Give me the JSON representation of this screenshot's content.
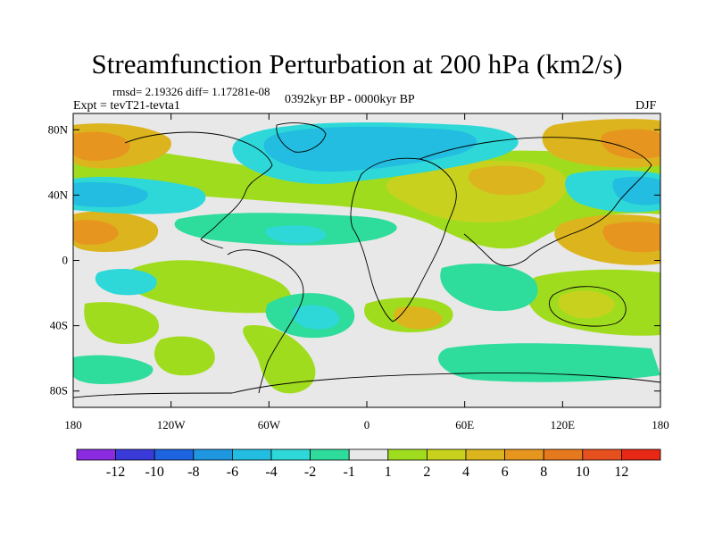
{
  "header": {
    "title": "Streamfunction Perturbation at 200 hPa (km2/s)",
    "rmsd_line": "rmsd= 2.19326 diff= 1.17281e-08",
    "experiment": "Expt = tevT21-tevta1",
    "period": "0392kyr BP - 0000kyr BP",
    "season": "DJF"
  },
  "axes": {
    "y_ticks": [
      {
        "label": "80N",
        "lat": 80
      },
      {
        "label": "40N",
        "lat": 40
      },
      {
        "label": "0",
        "lat": 0
      },
      {
        "label": "40S",
        "lat": -40
      },
      {
        "label": "80S",
        "lat": -80
      }
    ],
    "x_ticks": [
      {
        "label": "180",
        "lon": -180
      },
      {
        "label": "120W",
        "lon": -120
      },
      {
        "label": "60W",
        "lon": -60
      },
      {
        "label": "0",
        "lon": 0
      },
      {
        "label": "60E",
        "lon": 60
      },
      {
        "label": "120E",
        "lon": 120
      },
      {
        "label": "180",
        "lon": 180
      }
    ]
  },
  "colorbar": {
    "colors": [
      "#8a2be2",
      "#3a3ad8",
      "#1e64e0",
      "#1e96e0",
      "#22bde0",
      "#2ed8d8",
      "#2edc9c",
      "#e8e8e8",
      "#a0dc1e",
      "#c8d21e",
      "#dcb41e",
      "#e6961e",
      "#e6781e",
      "#e6501e",
      "#e62814"
    ],
    "labels": [
      "-12",
      "-10",
      "-8",
      "-6",
      "-4",
      "-2",
      "-1",
      "1",
      "2",
      "4",
      "6",
      "8",
      "10",
      "12"
    ]
  },
  "chart_data": {
    "type": "heatmap",
    "title": "Streamfunction Perturbation at 200 hPa (km2/s)",
    "variable": "Streamfunction perturbation",
    "units": "km2/s",
    "level": "200 hPa",
    "season": "DJF",
    "lon_range": [
      -180,
      180
    ],
    "lat_range": [
      -90,
      90
    ],
    "contour_levels": [
      -12,
      -10,
      -8,
      -6,
      -4,
      -2,
      -1,
      1,
      2,
      4,
      6,
      8,
      10,
      12
    ],
    "regions": [
      {
        "name": "north-pacific-high",
        "lon": -160,
        "lat": 68,
        "value": 5
      },
      {
        "name": "north-pacific-low",
        "lon": -150,
        "lat": 42,
        "value": -4
      },
      {
        "name": "subtropical-pacific-high",
        "lon": -165,
        "lat": 18,
        "value": 6
      },
      {
        "name": "north-america-arctic-low",
        "lon": -30,
        "lat": 68,
        "value": -5
      },
      {
        "name": "atlantic-low-band",
        "lon": -50,
        "lat": 15,
        "value": -3
      },
      {
        "name": "eurasia-high",
        "lon": 40,
        "lat": 45,
        "value": 4
      },
      {
        "name": "central-asia-high",
        "lon": 100,
        "lat": 55,
        "value": 3
      },
      {
        "name": "west-pacific-high",
        "lon": 150,
        "lat": 20,
        "value": 6
      },
      {
        "name": "northwest-pacific-low",
        "lon": 145,
        "lat": 45,
        "value": -3
      },
      {
        "name": "arctic-east-high",
        "lon": 160,
        "lat": 72,
        "value": 5
      },
      {
        "name": "south-pacific-low",
        "lon": -150,
        "lat": -10,
        "value": -4
      },
      {
        "name": "south-pacific-high",
        "lon": -110,
        "lat": -25,
        "value": 2
      },
      {
        "name": "south-america-low",
        "lon": -50,
        "lat": -20,
        "value": -3
      },
      {
        "name": "south-atlantic-high",
        "lon": -30,
        "lat": -60,
        "value": 2
      },
      {
        "name": "south-africa-high",
        "lon": 30,
        "lat": -25,
        "value": 5
      },
      {
        "name": "indian-ocean-low",
        "lon": 70,
        "lat": -20,
        "value": -3
      },
      {
        "name": "australia-high",
        "lon": 135,
        "lat": -25,
        "value": 4
      },
      {
        "name": "southern-ocean-low",
        "lon": 110,
        "lat": -60,
        "value": -2
      }
    ]
  }
}
